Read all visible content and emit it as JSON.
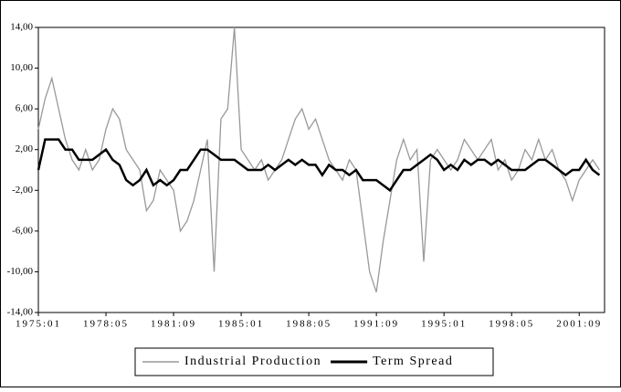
{
  "chart_data": {
    "type": "line",
    "x": [
      "1975:01",
      "1975:05",
      "1975:09",
      "1976:01",
      "1976:05",
      "1976:09",
      "1977:01",
      "1977:05",
      "1977:09",
      "1978:01",
      "1978:05",
      "1978:09",
      "1979:01",
      "1979:05",
      "1979:09",
      "1980:01",
      "1980:05",
      "1980:09",
      "1981:01",
      "1981:05",
      "1981:09",
      "1982:01",
      "1982:05",
      "1982:09",
      "1983:01",
      "1983:05",
      "1983:09",
      "1984:01",
      "1984:05",
      "1984:09",
      "1985:01",
      "1985:05",
      "1985:09",
      "1986:01",
      "1986:05",
      "1986:09",
      "1987:01",
      "1987:05",
      "1987:09",
      "1988:01",
      "1988:05",
      "1988:09",
      "1989:01",
      "1989:05",
      "1989:09",
      "1990:01",
      "1990:05",
      "1990:09",
      "1991:01",
      "1991:05",
      "1991:09",
      "1992:01",
      "1992:05",
      "1992:09",
      "1993:01",
      "1993:05",
      "1993:09",
      "1994:01",
      "1994:05",
      "1994:09",
      "1995:01",
      "1995:05",
      "1995:09",
      "1996:01",
      "1996:05",
      "1996:09",
      "1997:01",
      "1997:05",
      "1997:09",
      "1998:01",
      "1998:05",
      "1998:09",
      "1999:01",
      "1999:05",
      "1999:09",
      "2000:01",
      "2000:05",
      "2000:09",
      "2001:01",
      "2001:05",
      "2001:09",
      "2002:01",
      "2002:05",
      "2002:09"
    ],
    "series": [
      {
        "name": "Industrial Production",
        "color": "#999999",
        "values": [
          4,
          7,
          9,
          6,
          3,
          1,
          0,
          2,
          0,
          1,
          4,
          6,
          5,
          2,
          1,
          0,
          -4,
          -3,
          0,
          -1,
          -2,
          -6,
          -5,
          -3,
          0,
          3,
          -10,
          5,
          6,
          14,
          2,
          1,
          0,
          1,
          -1,
          0,
          1,
          3,
          5,
          6,
          4,
          5,
          3,
          1,
          0,
          -1,
          1,
          0,
          -5,
          -10,
          -12,
          -7,
          -3,
          1,
          3,
          1,
          2,
          -9,
          1,
          2,
          1,
          0,
          1,
          3,
          2,
          1,
          2,
          3,
          0,
          1,
          -1,
          0,
          2,
          1,
          3,
          1,
          2,
          0,
          -1,
          -3,
          -1,
          0,
          1,
          0
        ]
      },
      {
        "name": "Term Spread",
        "color": "#000000",
        "values": [
          0,
          3,
          3,
          3,
          2,
          2,
          1,
          1,
          1,
          1.5,
          2,
          1,
          0.5,
          -1,
          -1.5,
          -1,
          0,
          -1.5,
          -1,
          -1.5,
          -1,
          0,
          0,
          1,
          2,
          2,
          1.5,
          1,
          1,
          1,
          0.5,
          0,
          0,
          0,
          0.5,
          0,
          0.5,
          1,
          0.5,
          1,
          0.5,
          0.5,
          -0.5,
          0.5,
          0,
          0,
          -0.5,
          0,
          -1,
          -1,
          -1,
          -1.5,
          -2,
          -1,
          0,
          0,
          0.5,
          1,
          1.5,
          1,
          0,
          0.5,
          0,
          1,
          0.5,
          1,
          1,
          0.5,
          1,
          0.5,
          0,
          0,
          0,
          0.5,
          1,
          1,
          0.5,
          0,
          -0.5,
          0,
          0,
          1,
          0,
          -0.5
        ]
      }
    ],
    "xlim": [
      "1975:01",
      "2002:12"
    ],
    "xticks": [
      "1975:01",
      "1978:05",
      "1981:09",
      "1985:01",
      "1988:05",
      "1991:09",
      "1995:01",
      "1998:05",
      "2001:09"
    ],
    "ylim": [
      -14,
      14
    ],
    "yticks": [
      {
        "value": -14,
        "label": "-14,00"
      },
      {
        "value": -10,
        "label": "-10,00"
      },
      {
        "value": -6,
        "label": "-6,00"
      },
      {
        "value": -2,
        "label": "-2,00"
      },
      {
        "value": 2,
        "label": "2,00"
      },
      {
        "value": 6,
        "label": "6,00"
      },
      {
        "value": 10,
        "label": "10,00"
      },
      {
        "value": 14,
        "label": "14,00"
      }
    ]
  }
}
